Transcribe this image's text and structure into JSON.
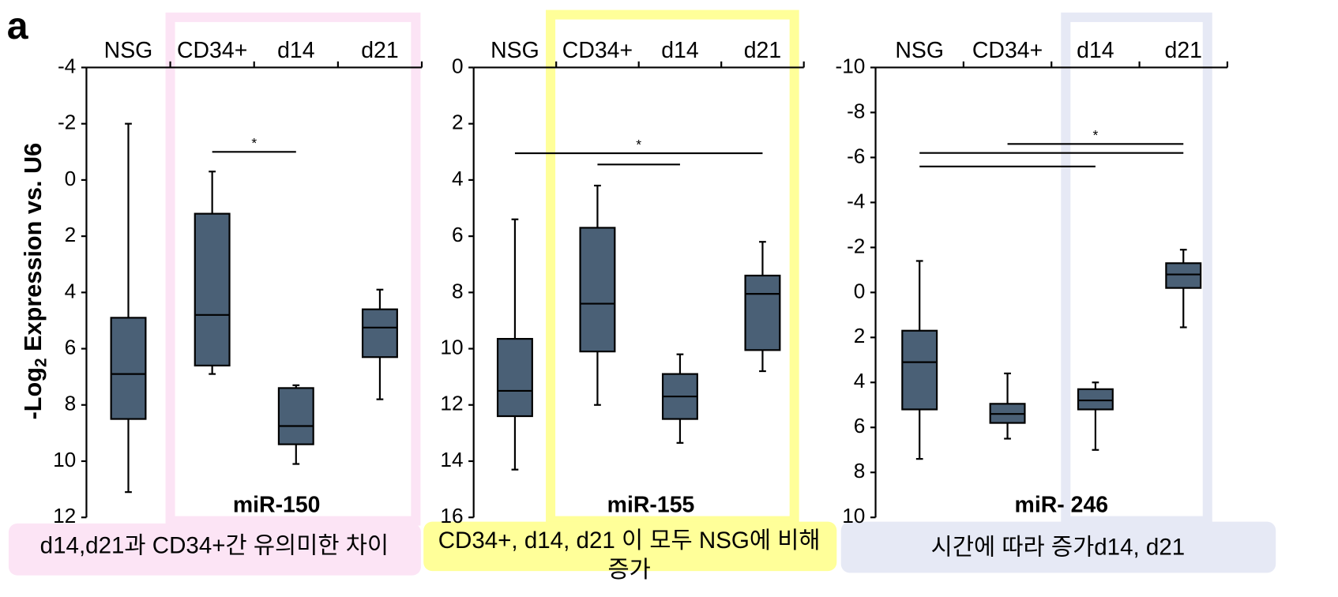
{
  "panel_label": "a",
  "ylabel": [
    "-Log",
    "2",
    " Expression vs. U6"
  ],
  "notes": [
    {
      "text": "d14,d21과 CD34+간 유의미한 차이",
      "color": "#fce4f5"
    },
    {
      "text": "CD34+, d14, d21 이 모두 NSG에 비해 증가",
      "color": "#ffff99"
    },
    {
      "text": "시간에 따라 증가d14, d21",
      "color": "#e6e9f5"
    }
  ],
  "chart_data": [
    {
      "type": "box",
      "title": "miR-150",
      "categories": [
        "NSG",
        "CD34+",
        "d14",
        "d21"
      ],
      "color": "#4a6076",
      "y_inverted": true,
      "ylim": [
        -4,
        12
      ],
      "yticks": [
        -4,
        -2,
        0,
        2,
        4,
        6,
        8,
        10,
        12
      ],
      "min": [
        -2,
        -0.3,
        7.3,
        3.9
      ],
      "q1": [
        4.9,
        1.2,
        7.4,
        4.6
      ],
      "median": [
        6.9,
        4.8,
        8.75,
        5.25
      ],
      "q3": [
        8.5,
        6.6,
        9.4,
        6.3
      ],
      "max": [
        11.1,
        6.9,
        10.1,
        7.8
      ],
      "annotation": "*",
      "brackets": [
        {
          "from": "CD34+",
          "to": "d14",
          "y": -1.0
        }
      ]
    },
    {
      "type": "box",
      "title": "miR-155",
      "categories": [
        "NSG",
        "CD34+",
        "d14",
        "d21"
      ],
      "color": "#4a6076",
      "y_inverted": true,
      "ylim": [
        0,
        16
      ],
      "yticks": [
        0,
        2,
        4,
        6,
        8,
        10,
        12,
        14,
        16
      ],
      "min": [
        5.4,
        4.2,
        10.2,
        6.2
      ],
      "q1": [
        9.65,
        5.7,
        10.9,
        7.4
      ],
      "median": [
        11.5,
        8.4,
        11.7,
        8.05
      ],
      "q3": [
        12.4,
        10.1,
        12.5,
        10.05
      ],
      "max": [
        14.3,
        12.0,
        13.35,
        10.8
      ],
      "annotation": "*",
      "brackets": [
        {
          "from": "NSG",
          "to": "d21",
          "y": 3.05
        },
        {
          "from": "CD34+",
          "to": "d14",
          "y": 3.45
        }
      ]
    },
    {
      "type": "box",
      "title": "miR- 246",
      "categories": [
        "NSG",
        "CD34+",
        "d14",
        "d21"
      ],
      "color": "#4a6076",
      "y_inverted": true,
      "ylim": [
        -10,
        10
      ],
      "yticks": [
        -10,
        -8,
        -6,
        -4,
        -2,
        0,
        2,
        4,
        6,
        8,
        10
      ],
      "min": [
        -1.4,
        3.6,
        4.0,
        -1.9
      ],
      "q1": [
        1.7,
        4.95,
        4.3,
        -1.3
      ],
      "median": [
        3.1,
        5.4,
        4.8,
        -0.8
      ],
      "q3": [
        5.2,
        5.8,
        5.2,
        -0.2
      ],
      "max": [
        7.4,
        6.5,
        7.0,
        1.55
      ],
      "annotation": "*",
      "brackets": [
        {
          "from": "CD34+",
          "to": "d21",
          "y": -6.6
        },
        {
          "from": "NSG",
          "to": "d21",
          "y": -6.2
        },
        {
          "from": "NSG",
          "to": "d14",
          "y": -5.6
        }
      ]
    }
  ]
}
